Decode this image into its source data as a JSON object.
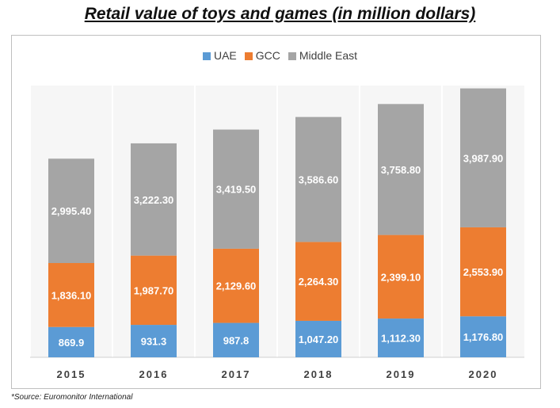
{
  "title": "Retail value of toys and games  (in million dollars)",
  "source": "*Source: Euromonitor International",
  "chart_data": {
    "type": "bar",
    "stacked": true,
    "categories": [
      "2015",
      "2016",
      "2017",
      "2018",
      "2019",
      "2020"
    ],
    "series": [
      {
        "name": "UAE",
        "color": "#5b9bd5",
        "values": [
          869.9,
          931.3,
          987.8,
          1047.2,
          1112.3,
          1176.8
        ],
        "labels": [
          "869.9",
          "931.3",
          "987.8",
          "1,047.20",
          "1,112.30",
          "1,176.80"
        ]
      },
      {
        "name": "GCC",
        "color": "#ed7d31",
        "values": [
          1836.1,
          1987.7,
          2129.6,
          2264.3,
          2399.1,
          2553.9
        ],
        "labels": [
          "1,836.10",
          "1,987.70",
          "2,129.60",
          "2,264.30",
          "2,399.10",
          "2,553.90"
        ]
      },
      {
        "name": "Middle East",
        "color": "#a5a5a5",
        "values": [
          2995.4,
          3222.3,
          3419.5,
          3586.6,
          3758.8,
          3987.9
        ],
        "labels": [
          "2,995.40",
          "3,222.30",
          "3,419.50",
          "3,586.60",
          "3,758.80",
          "3,987.90"
        ]
      }
    ],
    "legend": "top-center",
    "grid": false
  }
}
